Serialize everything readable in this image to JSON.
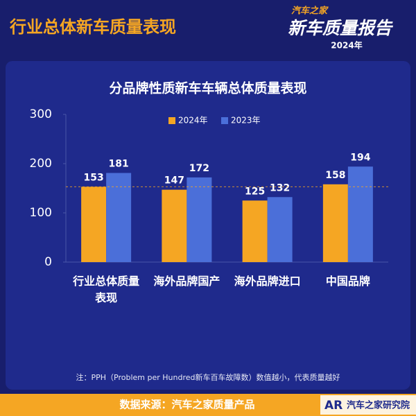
{
  "header": {
    "title": "行业总体新车质量表现",
    "logo_top": "汽车之家",
    "logo_main": "新车质量报告",
    "logo_year": "2024年"
  },
  "chart_data": {
    "type": "bar",
    "title": "分品牌性质新车车辆总体质量表现",
    "categories": [
      "行业总体质量表现",
      "海外品牌国产",
      "海外品牌进口",
      "中国品牌"
    ],
    "series": [
      {
        "name": "2024年",
        "color": "#f5a623",
        "values": [
          153,
          147,
          125,
          158
        ]
      },
      {
        "name": "2023年",
        "color": "#4b6fd9",
        "values": [
          181,
          172,
          132,
          194
        ]
      }
    ],
    "ylim": [
      0,
      300
    ],
    "yticks": [
      0,
      100,
      200,
      300
    ],
    "grid": false,
    "reference_line": 153,
    "legend": "top"
  },
  "note": "注：PPH（Problem per Hundred新车百车故障数）数值越小，代表质量越好",
  "footer": {
    "source": "数据来源：汽车之家质量产品",
    "logo_mark": "AR",
    "logo_text": "汽车之家研究院"
  }
}
